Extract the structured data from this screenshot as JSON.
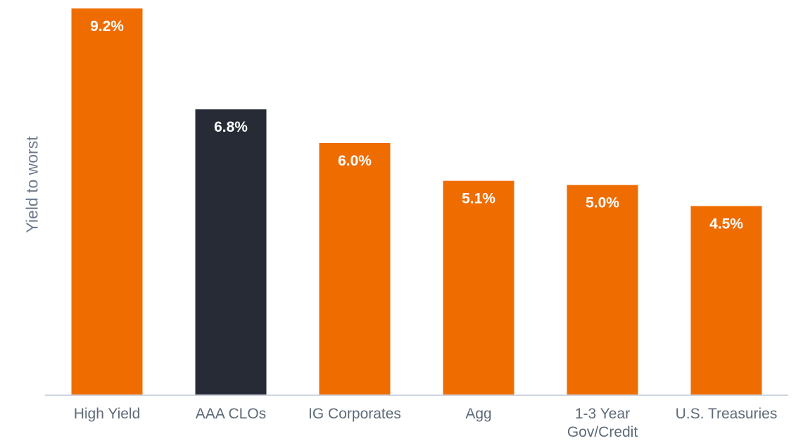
{
  "chart_data": {
    "type": "bar",
    "title": "",
    "xlabel": "",
    "ylabel": "Yield to worst",
    "categories": [
      "High Yield",
      "AAA CLOs",
      "IG Corporates",
      "Agg",
      "1-3 Year Gov/Credit",
      "U.S. Treasuries"
    ],
    "category_lines": [
      [
        "High Yield"
      ],
      [
        "AAA CLOs"
      ],
      [
        "IG Corporates"
      ],
      [
        "Agg"
      ],
      [
        "1-3 Year",
        "Gov/Credit"
      ],
      [
        "U.S. Treasuries"
      ]
    ],
    "values": [
      9.2,
      6.8,
      6.0,
      5.1,
      5.0,
      4.5
    ],
    "data_labels": [
      "9.2%",
      "6.8%",
      "6.0%",
      "5.1%",
      "5.0%",
      "4.5%"
    ],
    "ylim": [
      0,
      9.2
    ],
    "grid": false,
    "legend": "none",
    "colors": [
      "#ef6c00",
      "#262b36",
      "#ef6c00",
      "#ef6c00",
      "#ef6c00",
      "#ef6c00"
    ],
    "axis_color": "#cfd4e0"
  }
}
